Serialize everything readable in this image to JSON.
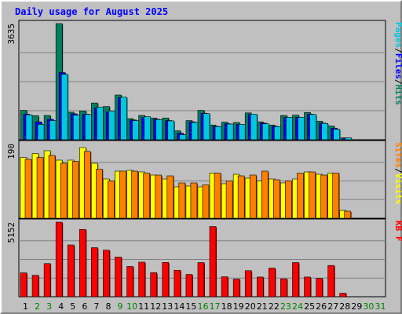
{
  "chart_data": {
    "type": "bar",
    "title": "Daily usage for August 2025",
    "categories": [
      "1",
      "2",
      "3",
      "4",
      "5",
      "6",
      "7",
      "8",
      "9",
      "10",
      "11",
      "12",
      "13",
      "14",
      "15",
      "16",
      "17",
      "18",
      "19",
      "20",
      "21",
      "22",
      "23",
      "24",
      "25",
      "26",
      "27",
      "28",
      "29",
      "30",
      "31"
    ],
    "weekend_days": [
      "2",
      "3",
      "9",
      "10",
      "16",
      "17",
      "23",
      "24",
      "30",
      "31"
    ],
    "panels": [
      {
        "name": "hits-files-pages",
        "ymax_label": "3635",
        "ylim": [
          0,
          3635
        ],
        "right_label": [
          {
            "text": "Pages",
            "color": "#00c8e0"
          },
          {
            "text": "/",
            "color": "#000000"
          },
          {
            "text": "Files",
            "color": "#0000ff"
          },
          {
            "text": "/",
            "color": "#000000"
          },
          {
            "text": "Hits",
            "color": "#008060"
          }
        ],
        "series": [
          {
            "name": "Hits",
            "color": "#008060",
            "values": [
              920,
              750,
              760,
              3635,
              860,
              900,
              1150,
              1040,
              1400,
              660,
              760,
              680,
              680,
              280,
              600,
              920,
              460,
              550,
              540,
              840,
              560,
              460,
              760,
              770,
              850,
              580,
              430,
              60,
              0,
              0,
              0
            ]
          },
          {
            "name": "Files",
            "color": "#0000ff",
            "values": [
              800,
              560,
              640,
              2100,
              810,
              800,
              1000,
              880,
              1320,
              620,
              700,
              640,
              600,
              200,
              560,
              830,
              420,
              500,
              480,
              790,
              520,
              420,
              700,
              700,
              800,
              520,
              360,
              50,
              0,
              0,
              0
            ]
          },
          {
            "name": "Pages",
            "color": "#00c8e0",
            "values": [
              780,
              480,
              600,
              2050,
              770,
              790,
              1020,
              900,
              1330,
              600,
              720,
              630,
              590,
              160,
              540,
              820,
              410,
              490,
              480,
              800,
              500,
              410,
              700,
              700,
              790,
              510,
              330,
              60,
              0,
              0,
              0
            ]
          }
        ]
      },
      {
        "name": "visits-sites",
        "ymax_label": "190",
        "ylim": [
          0,
          190
        ],
        "right_label": [
          {
            "text": "Sites",
            "color": "#ff8000"
          },
          {
            "text": "/",
            "color": "#000000"
          },
          {
            "text": "Visits",
            "color": "#ffff00"
          }
        ],
        "series": [
          {
            "name": "Visits",
            "color": "#ffff00",
            "values": [
              155,
              165,
              172,
              148,
              148,
              180,
              140,
              100,
              120,
              122,
              118,
              110,
              100,
              80,
              82,
              80,
              115,
              88,
              112,
              102,
              95,
              100,
              90,
              100,
              118,
              112,
              115,
              20,
              0,
              0,
              0
            ]
          },
          {
            "name": "Sites",
            "color": "#ff8000",
            "values": [
              150,
              155,
              160,
              140,
              145,
              170,
              125,
              95,
              120,
              120,
              115,
              110,
              108,
              90,
              90,
              85,
              115,
              95,
              108,
              110,
              120,
              98,
              95,
              115,
              118,
              110,
              115,
              18,
              0,
              0,
              0
            ]
          }
        ]
      },
      {
        "name": "kbytes",
        "ymax_label": "5152",
        "ylim": [
          0,
          5152
        ],
        "right_label": [
          {
            "text": "KB F",
            "color": "#ff0000"
          }
        ],
        "series": [
          {
            "name": "KB F",
            "color": "#ff0000",
            "values": [
              1650,
              1480,
              2290,
              5152,
              3580,
              4650,
              3390,
              3220,
              2740,
              2090,
              2390,
              1660,
              2370,
              1830,
              1540,
              2360,
              4850,
              1380,
              1220,
              1800,
              1360,
              1980,
              1240,
              2360,
              1360,
              1270,
              2160,
              240,
              0,
              0,
              0
            ]
          }
        ]
      }
    ],
    "grid": true
  }
}
